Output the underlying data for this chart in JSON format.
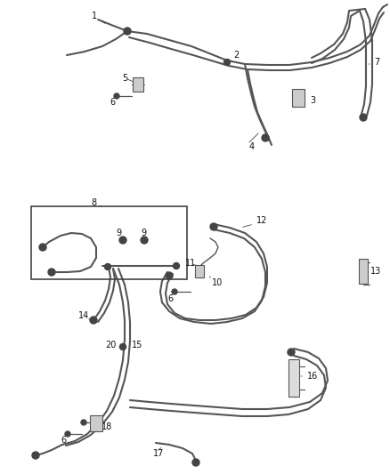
{
  "background_color": "#ffffff",
  "figure_width": 4.38,
  "figure_height": 5.33,
  "dpi": 100,
  "label_fontsize": 7.0,
  "line_color": "#888888",
  "line_color_dark": "#555555",
  "line_width": 1.0
}
